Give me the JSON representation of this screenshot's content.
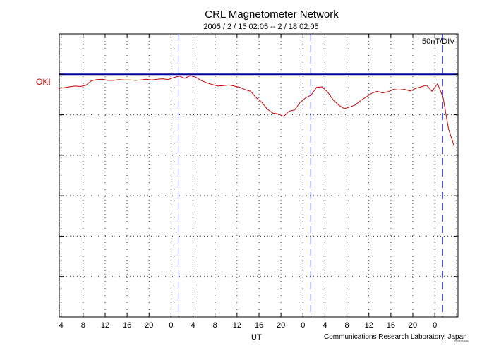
{
  "chart_data": {
    "type": "line",
    "title": "CRL Magnetometer Network",
    "subtitle": "2005 / 2 / 15   02:05 --  2 / 18   02:05",
    "scale_label": "50nT/DIV",
    "station": "OKI",
    "xlabel": "UT",
    "credit": "Communications Research Laboratory, Japan",
    "mark_text": "NN  N  NNN",
    "xlim": [
      0,
      72
    ],
    "ylim": [
      -6,
      1
    ],
    "x_tick_labels": [
      "4",
      "8",
      "12",
      "16",
      "20",
      "0",
      "4",
      "8",
      "12",
      "16",
      "20",
      "0",
      "4",
      "8",
      "12",
      "16",
      "20",
      "0"
    ],
    "day_boundaries": [
      21.9167,
      45.9167,
      69.9167
    ],
    "colors": {
      "trace": "#cc0000",
      "baseline": "#000099",
      "day_line": "#0000cc",
      "frame": "#000000",
      "grid": "#333333"
    },
    "series": [
      {
        "name": "OKI",
        "x": [
          0,
          1,
          2,
          3,
          4,
          5,
          6,
          7,
          8,
          9,
          10,
          11,
          12,
          13,
          14,
          15,
          16,
          17,
          18,
          19,
          20,
          21,
          22,
          23,
          24,
          25,
          26,
          27,
          28,
          29,
          30,
          31,
          32,
          33,
          34,
          35,
          36,
          37,
          38,
          39,
          40,
          41,
          42,
          43,
          44,
          45,
          46,
          47,
          48,
          49,
          50,
          51,
          52,
          53,
          54,
          55,
          56,
          57,
          58,
          59,
          60,
          61,
          62,
          63,
          64,
          65,
          66,
          67,
          68,
          69,
          70,
          71,
          72
        ],
        "values": [
          -0.35,
          -0.33,
          -0.31,
          -0.29,
          -0.3,
          -0.27,
          -0.16,
          -0.13,
          -0.12,
          -0.15,
          -0.15,
          -0.13,
          -0.14,
          -0.14,
          -0.15,
          -0.14,
          -0.12,
          -0.14,
          -0.12,
          -0.11,
          -0.13,
          -0.08,
          -0.04,
          -0.1,
          -0.03,
          -0.07,
          -0.15,
          -0.21,
          -0.25,
          -0.29,
          -0.28,
          -0.26,
          -0.29,
          -0.32,
          -0.38,
          -0.42,
          -0.58,
          -0.69,
          -0.86,
          -0.96,
          -0.98,
          -1.04,
          -0.91,
          -0.88,
          -0.69,
          -0.58,
          -0.51,
          -0.32,
          -0.31,
          -0.44,
          -0.63,
          -0.76,
          -0.85,
          -0.81,
          -0.76,
          -0.65,
          -0.56,
          -0.47,
          -0.42,
          -0.46,
          -0.43,
          -0.37,
          -0.39,
          -0.37,
          -0.41,
          -0.35,
          -0.31,
          -0.27,
          -0.42,
          -0.23,
          -0.57,
          -1.35,
          -1.77
        ]
      }
    ]
  }
}
